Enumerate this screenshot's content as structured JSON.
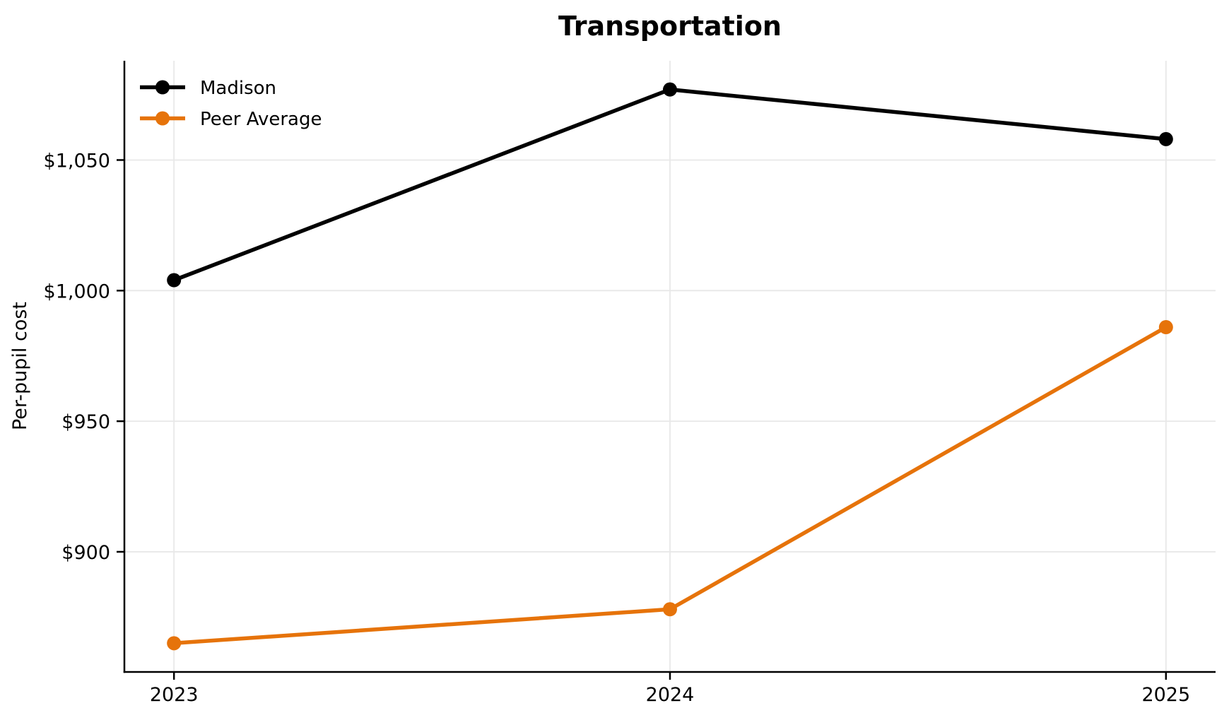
{
  "chart_data": {
    "type": "line",
    "title": "Transportation",
    "xlabel": "",
    "ylabel": "Per-pupil cost",
    "categories": [
      2023,
      2024,
      2025
    ],
    "x_tick_labels": [
      "2023",
      "2024",
      "2025"
    ],
    "series": [
      {
        "name": "Madison",
        "color": "#000000",
        "values": [
          1004,
          1077,
          1058
        ]
      },
      {
        "name": "Peer Average",
        "color": "#E6730A",
        "values": [
          865,
          878,
          986
        ]
      }
    ],
    "y_ticks": [
      900,
      950,
      1000,
      1050
    ],
    "y_tick_labels": [
      "$900",
      "$950",
      "$1,000",
      "$1,050"
    ],
    "ylim": [
      854,
      1088
    ],
    "xlim": [
      2022.9,
      2025.1
    ],
    "grid": true,
    "grid_color": "#E8E8E8",
    "axis_color": "#000000",
    "background": "#FFFFFF",
    "legend_position": "upper-left"
  }
}
